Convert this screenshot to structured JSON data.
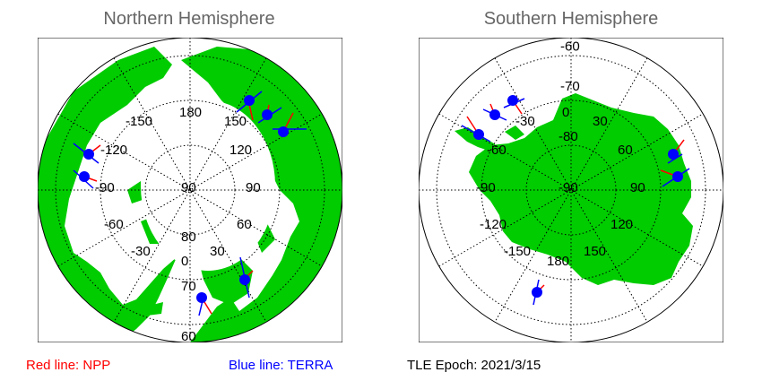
{
  "north": {
    "title": "Northern Hemisphere",
    "lon_labels": [
      "180",
      "150",
      "120",
      "90",
      "60",
      "30",
      "0",
      "-30",
      "-60",
      "-90",
      "-120",
      "-150"
    ],
    "lat_labels": [
      "90",
      "80",
      "70",
      "60"
    ]
  },
  "south": {
    "title": "Southern Hemisphere",
    "lon_labels": [
      "0",
      "30",
      "60",
      "90",
      "120",
      "150",
      "180",
      "-150",
      "-120",
      "-90",
      "-60",
      "-30"
    ],
    "lat_labels": [
      "-60",
      "-70",
      "-80",
      "-90"
    ]
  },
  "legend": {
    "npp": "Red line: NPP",
    "terra": "Blue line: TERRA",
    "epoch": "TLE Epoch: 2021/3/15"
  },
  "colors": {
    "land": "#00cc00",
    "npp": "#ff0000",
    "terra": "#0000ff",
    "satellite_marker": "#0000ff",
    "title": "#666666"
  }
}
